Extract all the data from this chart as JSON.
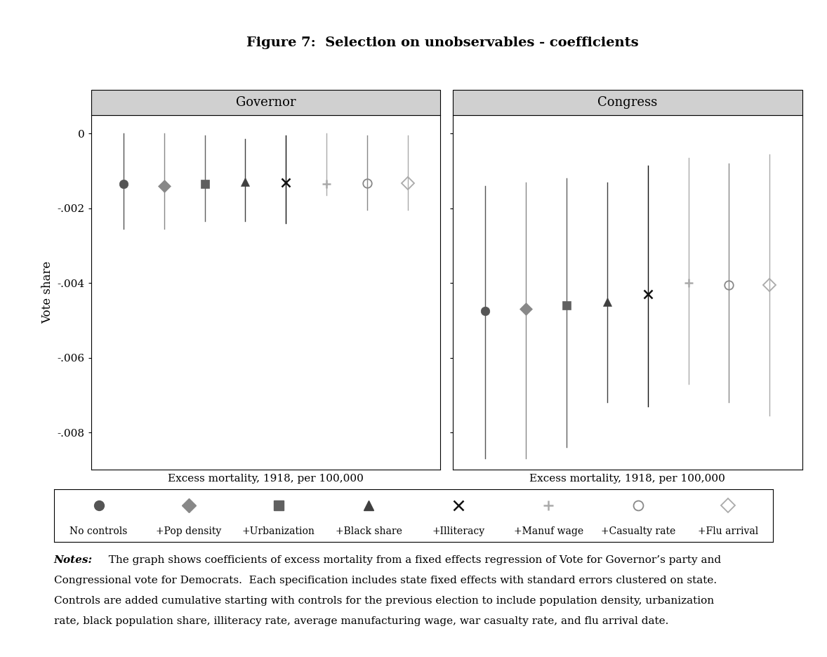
{
  "title": "Figure 7:  Selection on unobservables - coefficients",
  "panel_labels": [
    "Governor",
    "Congress"
  ],
  "xlabel": "Excess mortality, 1918, per 100,000",
  "ylabel": "Vote share",
  "ylim": [
    -0.009,
    0.0005
  ],
  "yticks": [
    0,
    -0.002,
    -0.004,
    -0.006,
    -0.008
  ],
  "ytick_labels": [
    "0",
    "-.002",
    "-.004",
    "-.006",
    "-.008"
  ],
  "series": [
    {
      "label": "No controls",
      "marker": "o",
      "color": "#555555",
      "mfc": "#555555",
      "mec": "#555555"
    },
    {
      "label": "+Pop density",
      "marker": "D",
      "color": "#888888",
      "mfc": "#888888",
      "mec": "#888888"
    },
    {
      "label": "+Urbanization",
      "marker": "s",
      "color": "#606060",
      "mfc": "#606060",
      "mec": "#606060"
    },
    {
      "label": "+Black share",
      "marker": "^",
      "color": "#404040",
      "mfc": "#404040",
      "mec": "#404040"
    },
    {
      "label": "+Illiteracy",
      "marker": "x",
      "color": "#111111",
      "mfc": "#111111",
      "mec": "#111111"
    },
    {
      "label": "+Manuf wage",
      "marker": "+",
      "color": "#aaaaaa",
      "mfc": "#aaaaaa",
      "mec": "#aaaaaa"
    },
    {
      "label": "+Casualty rate",
      "marker": "o",
      "color": "#888888",
      "mfc": "none",
      "mec": "#888888"
    },
    {
      "label": "+Flu arrival",
      "marker": "D",
      "color": "#aaaaaa",
      "mfc": "none",
      "mec": "#aaaaaa"
    }
  ],
  "gov_coefs": [
    -0.00135,
    -0.0014,
    -0.00135,
    -0.00128,
    -0.0013,
    -0.00135,
    -0.00133,
    -0.00133
  ],
  "gov_ci_lo": [
    -0.00255,
    -0.00255,
    -0.00235,
    -0.00235,
    -0.0024,
    -0.00165,
    -0.00205,
    -0.00205
  ],
  "gov_ci_hi": [
    0.0,
    0.0,
    -5e-05,
    -0.00015,
    -5e-05,
    0.0,
    -5e-05,
    -5e-05
  ],
  "con_coefs": [
    -0.00475,
    -0.0047,
    -0.0046,
    -0.0045,
    -0.0043,
    -0.004,
    -0.00405,
    -0.00405
  ],
  "con_ci_lo": [
    -0.0087,
    -0.0087,
    -0.0084,
    -0.0072,
    -0.0073,
    -0.0067,
    -0.0072,
    -0.00755
  ],
  "con_ci_hi": [
    -0.0014,
    -0.0013,
    -0.0012,
    -0.0013,
    -0.00085,
    -0.00065,
    -0.0008,
    -0.00055
  ],
  "legend_items": [
    {
      "label": "No controls",
      "marker": "o",
      "mfc": "#555555",
      "mec": "#555555",
      "color": "#555555"
    },
    {
      "label": "+Pop density",
      "marker": "D",
      "mfc": "#888888",
      "mec": "#888888",
      "color": "#888888"
    },
    {
      "label": "+Urbanization",
      "marker": "s",
      "mfc": "#606060",
      "mec": "#606060",
      "color": "#606060"
    },
    {
      "label": "+Black share",
      "marker": "^",
      "mfc": "#404040",
      "mec": "#404040",
      "color": "#404040"
    },
    {
      "label": "+Illiteracy",
      "marker": "x",
      "mfc": "#111111",
      "mec": "#111111",
      "color": "#111111"
    },
    {
      "label": "+Manuf wage",
      "marker": "+",
      "mfc": "#aaaaaa",
      "mec": "#aaaaaa",
      "color": "#aaaaaa"
    },
    {
      "label": "+Casualty rate",
      "marker": "o",
      "mfc": "none",
      "mec": "#888888",
      "color": "#888888"
    },
    {
      "label": "+Flu arrival",
      "marker": "D",
      "mfc": "none",
      "mec": "#aaaaaa",
      "color": "#aaaaaa"
    }
  ]
}
